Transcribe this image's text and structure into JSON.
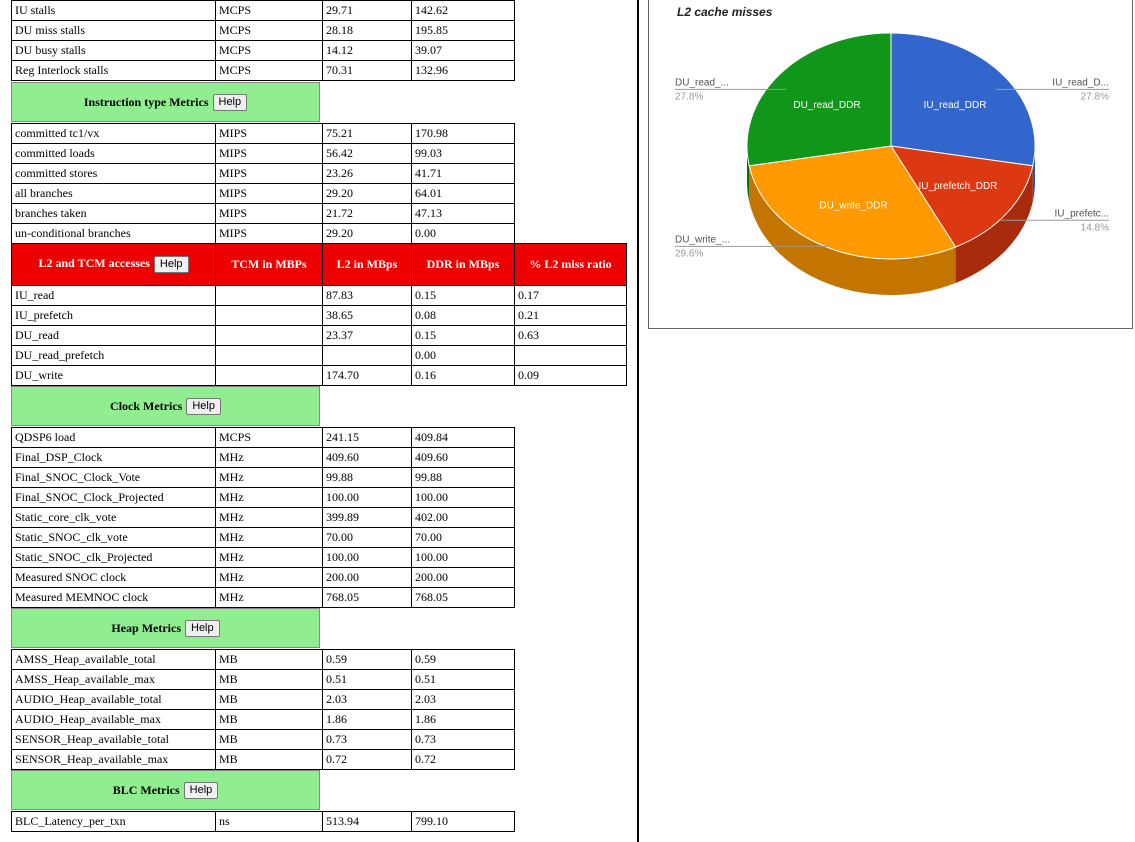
{
  "help_label": "Help",
  "stall_rows": [
    [
      "IU stalls",
      "MCPS",
      "29.71",
      "142.62"
    ],
    [
      "DU miss stalls",
      "MCPS",
      "28.18",
      "195.85"
    ],
    [
      "DU busy stalls",
      "MCPS",
      "14.12",
      "39.07"
    ],
    [
      "Reg Interlock stalls",
      "MCPS",
      "70.31",
      "132.96"
    ]
  ],
  "instruction": {
    "title": "Instruction type Metrics",
    "rows": [
      [
        "committed tc1/vx",
        "MIPS",
        "75.21",
        "170.98"
      ],
      [
        "committed loads",
        "MIPS",
        "56.42",
        "99.03"
      ],
      [
        "committed stores",
        "MIPS",
        "23.26",
        "41.71"
      ],
      [
        "all branches",
        "MIPS",
        "29.20",
        "64.01"
      ],
      [
        "branches taken",
        "MIPS",
        "21.72",
        "47.13"
      ],
      [
        "un-conditional branches",
        "MIPS",
        "29.20",
        "0.00"
      ]
    ]
  },
  "l2": {
    "title": "L2 and TCM accesses",
    "headers": [
      "TCM in MBPs",
      "L2 in MBps",
      "DDR in MBps",
      "% L2 miss ratio"
    ],
    "rows": [
      [
        "IU_read",
        "",
        "87.83",
        "0.15",
        "0.17"
      ],
      [
        "IU_prefetch",
        "",
        "38.65",
        "0.08",
        "0.21"
      ],
      [
        "DU_read",
        "",
        "23.37",
        "0.15",
        "0.63"
      ],
      [
        "DU_read_prefetch",
        "",
        "",
        "0.00",
        ""
      ],
      [
        "DU_write",
        "",
        "174.70",
        "0.16",
        "0.09"
      ]
    ]
  },
  "clock": {
    "title": "Clock Metrics",
    "rows": [
      [
        "QDSP6 load",
        "MCPS",
        "241.15",
        "409.84"
      ],
      [
        "Final_DSP_Clock",
        "MHz",
        "409.60",
        "409.60"
      ],
      [
        "Final_SNOC_Clock_Vote",
        "MHz",
        "99.88",
        "99.88"
      ],
      [
        "Final_SNOC_Clock_Projected",
        "MHz",
        "100.00",
        "100.00"
      ],
      [
        "Static_core_clk_vote",
        "MHz",
        "399.89",
        "402.00"
      ],
      [
        "Static_SNOC_clk_vote",
        "MHz",
        "70.00",
        "70.00"
      ],
      [
        "Static_SNOC_clk_Projected",
        "MHz",
        "100.00",
        "100.00"
      ],
      [
        "Measured SNOC clock",
        "MHz",
        "200.00",
        "200.00"
      ],
      [
        "Measured MEMNOC clock",
        "MHz",
        "768.05",
        "768.05"
      ]
    ]
  },
  "heap": {
    "title": "Heap Metrics",
    "rows": [
      [
        "AMSS_Heap_available_total",
        "MB",
        "0.59",
        "0.59"
      ],
      [
        "AMSS_Heap_available_max",
        "MB",
        "0.51",
        "0.51"
      ],
      [
        "AUDIO_Heap_available_total",
        "MB",
        "2.03",
        "2.03"
      ],
      [
        "AUDIO_Heap_available_max",
        "MB",
        "1.86",
        "1.86"
      ],
      [
        "SENSOR_Heap_available_total",
        "MB",
        "0.73",
        "0.73"
      ],
      [
        "SENSOR_Heap_available_max",
        "MB",
        "0.72",
        "0.72"
      ]
    ]
  },
  "blc": {
    "title": "BLC Metrics",
    "rows": [
      [
        "BLC_Latency_per_txn",
        "ns",
        "513.94",
        "799.10"
      ]
    ]
  },
  "colors": {
    "section_header": "#90ee90",
    "l2_header": "#ee0000"
  },
  "chart_data": {
    "type": "pie",
    "style": "3d",
    "title": "L2 cache misses",
    "slices": [
      {
        "label": "IU_read_DDR",
        "outside_label": "IU_read_D...",
        "pct_label": "27.8%",
        "value": 27.8,
        "color": "#3366cc",
        "dark": "#2a52a3"
      },
      {
        "label": "IU_prefetch_DDR",
        "outside_label": "IU_prefetc...",
        "pct_label": "14.8%",
        "value": 14.8,
        "color": "#dc3912",
        "dark": "#a82b0e"
      },
      {
        "label": "DU_write_DDR",
        "outside_label": "DU_write_...",
        "pct_label": "29.6%",
        "value": 29.6,
        "color": "#ff9900",
        "dark": "#c47500"
      },
      {
        "label": "DU_read_DDR",
        "outside_label": "DU_read_...",
        "pct_label": "27.8%",
        "value": 27.8,
        "color": "#109618",
        "dark": "#0b6b11"
      }
    ]
  }
}
